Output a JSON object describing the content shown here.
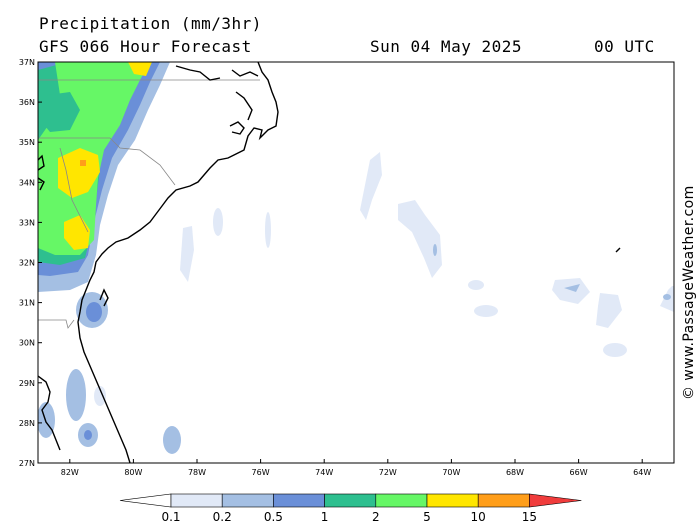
{
  "header": {
    "title": "Precipitation (mm/3hr)",
    "model": "GFS 066 Hour Forecast",
    "date": "Sun 04 May 2025",
    "time": "00 UTC"
  },
  "watermark": "© www.PassageWeather.com",
  "map": {
    "lon_range": [
      -83,
      -63
    ],
    "lat_range": [
      27,
      37
    ],
    "lat_ticks": [
      "27N",
      "28N",
      "29N",
      "30N",
      "31N",
      "32N",
      "33N",
      "34N",
      "35N",
      "36N",
      "37N"
    ],
    "lon_ticks": [
      "82W",
      "80W",
      "78W",
      "76W",
      "74W",
      "72W",
      "70W",
      "68W",
      "66W",
      "64W"
    ]
  },
  "legend": {
    "labels": [
      "0.1",
      "0.2",
      "0.5",
      "1",
      "2",
      "5",
      "10",
      "15"
    ],
    "colors": [
      "#ffffff",
      "#e1e9f7",
      "#a4bfe3",
      "#6a8fd8",
      "#2ebf8f",
      "#66f766",
      "#ffe600",
      "#ff9e1a",
      "#f03c3c"
    ]
  }
}
